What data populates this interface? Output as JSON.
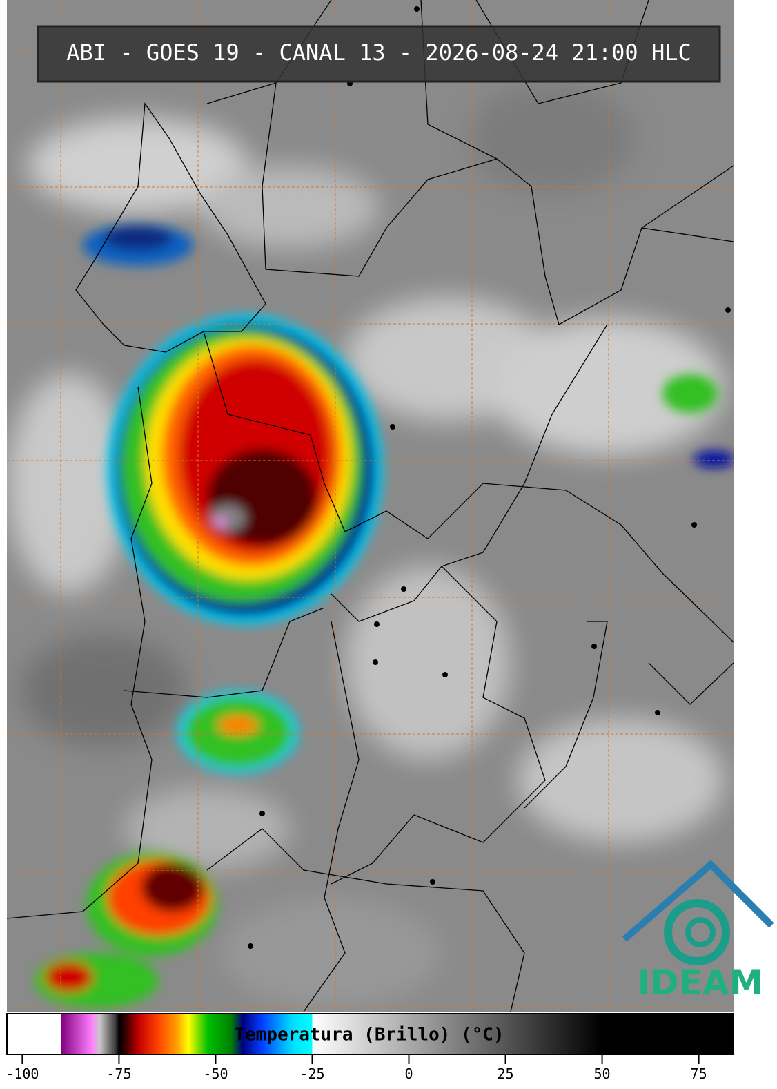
{
  "header": {
    "title": "ABI - GOES 19 - CANAL 13 - 2026-08-24 21:00 HLC"
  },
  "colorbar": {
    "label": "Temperatura (Brillo) (°C)",
    "range": [
      -104,
      84
    ],
    "ticks": [
      -100,
      -75,
      -50,
      -25,
      0,
      25,
      50,
      75
    ],
    "stops": [
      {
        "value": -104,
        "color": "#ffffff"
      },
      {
        "value": -90,
        "color": "#ffffff"
      },
      {
        "value": -90,
        "color": "#800080"
      },
      {
        "value": -82,
        "color": "#ff80ff"
      },
      {
        "value": -80,
        "color": "#c8c8c8"
      },
      {
        "value": -76,
        "color": "#404040"
      },
      {
        "value": -75,
        "color": "#000000"
      },
      {
        "value": -73,
        "color": "#400000"
      },
      {
        "value": -70,
        "color": "#c00000"
      },
      {
        "value": -65,
        "color": "#ff4000"
      },
      {
        "value": -60,
        "color": "#ffa000"
      },
      {
        "value": -57,
        "color": "#ffff00"
      },
      {
        "value": -52,
        "color": "#00c000"
      },
      {
        "value": -46,
        "color": "#008000"
      },
      {
        "value": -43,
        "color": "#000080"
      },
      {
        "value": -38,
        "color": "#0040ff"
      },
      {
        "value": -30,
        "color": "#00e0ff"
      },
      {
        "value": -25,
        "color": "#00ffff"
      },
      {
        "value": -25,
        "color": "#ffffff"
      },
      {
        "value": 50,
        "color": "#000000"
      },
      {
        "value": 84,
        "color": "#000000"
      }
    ]
  },
  "logo": {
    "text": "IDEAM"
  }
}
